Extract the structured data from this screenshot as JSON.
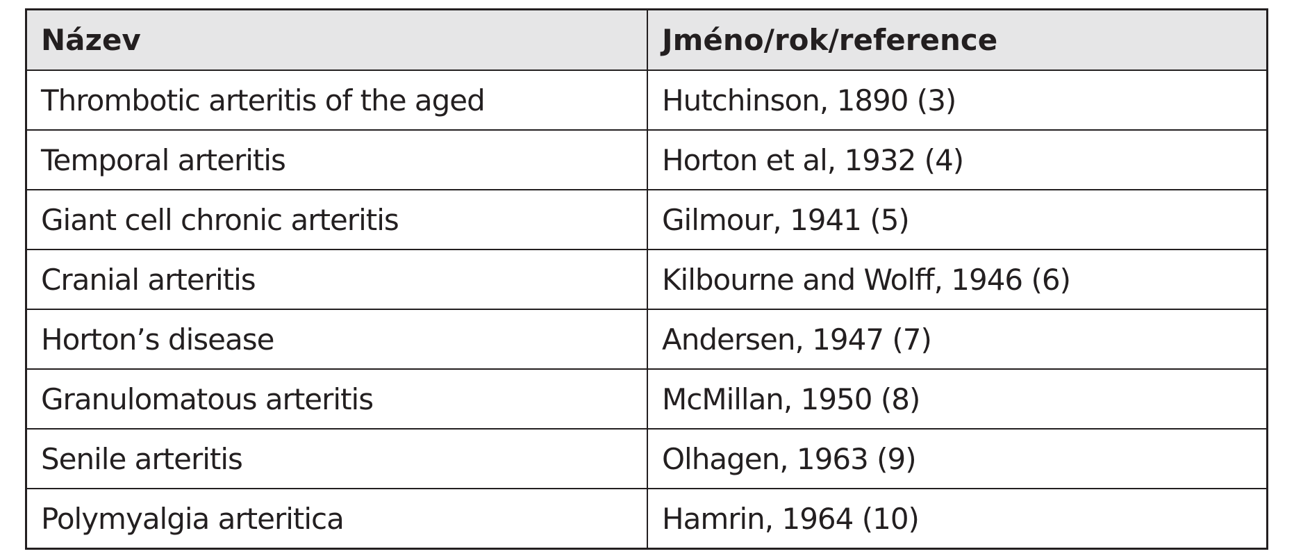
{
  "table": {
    "header": [
      "Název",
      "Jméno/rok/reference"
    ],
    "rows": [
      [
        "Thrombotic arteritis of the aged",
        "Hutchinson, 1890 (3)"
      ],
      [
        "Temporal arteritis",
        "Horton et al, 1932 (4)"
      ],
      [
        "Giant cell chronic arteritis",
        "Gilmour, 1941 (5)"
      ],
      [
        "Cranial arteritis",
        "Kilbourne and Wolff, 1946 (6)"
      ],
      [
        "Horton’s disease",
        "Andersen, 1947 (7)"
      ],
      [
        "Granulomatous arteritis",
        "McMillan, 1950 (8)"
      ],
      [
        "Senile arteritis",
        "Olhagen, 1963 (9)"
      ],
      [
        "Polymyalgia arteritica",
        "Hamrin, 1964 (10)"
      ]
    ]
  }
}
